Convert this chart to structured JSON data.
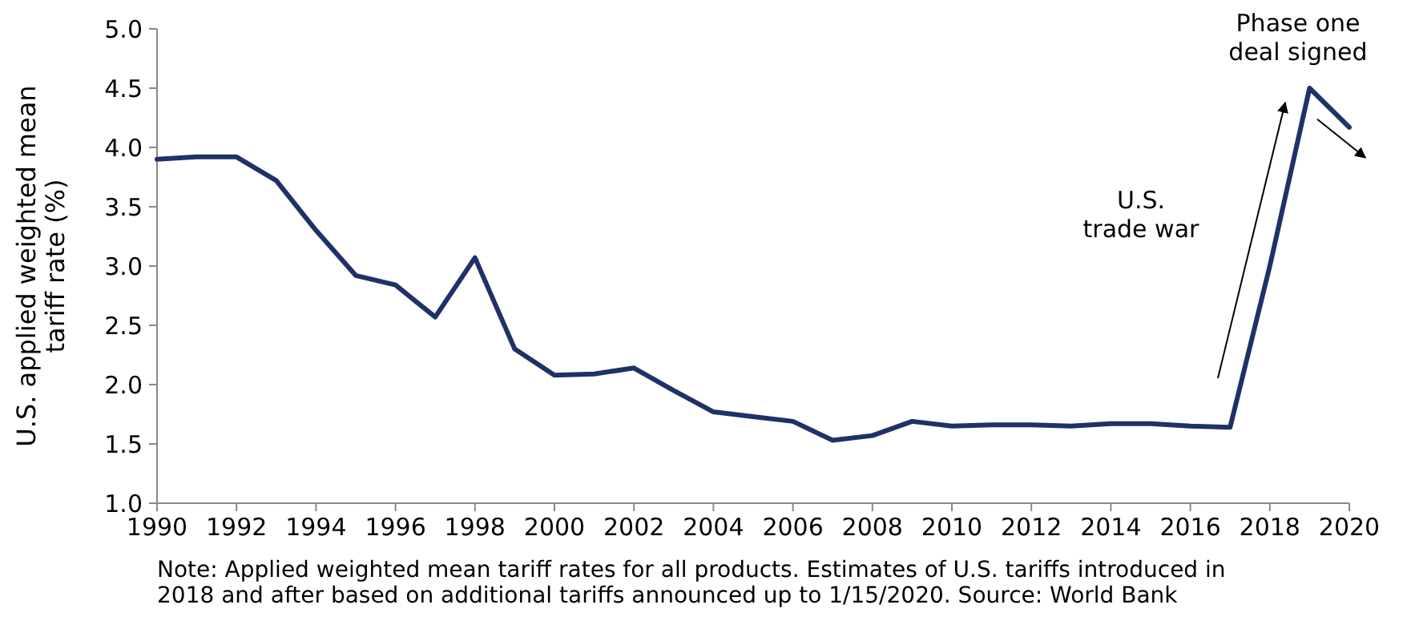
{
  "chart_data": {
    "type": "line",
    "ylabel": "U.S. applied weighted mean tariff rate (%)",
    "x": [
      1990,
      1991,
      1992,
      1993,
      1994,
      1995,
      1996,
      1997,
      1998,
      1999,
      2000,
      2001,
      2002,
      2003,
      2004,
      2005,
      2006,
      2007,
      2008,
      2009,
      2010,
      2011,
      2012,
      2013,
      2014,
      2015,
      2016,
      2017,
      2018,
      2019,
      2020
    ],
    "series": [
      {
        "color": "#1f3167",
        "values": [
          3.9,
          3.92,
          3.92,
          3.72,
          3.3,
          2.92,
          2.84,
          2.57,
          3.07,
          2.3,
          2.08,
          2.09,
          2.14,
          1.95,
          1.77,
          1.73,
          1.69,
          1.53,
          1.57,
          1.69,
          1.65,
          1.66,
          1.66,
          1.65,
          1.67,
          1.67,
          1.65,
          1.64,
          3.0,
          4.5,
          4.17
        ]
      }
    ],
    "xlim": [
      1990,
      2020
    ],
    "xticks": [
      1990,
      1992,
      1994,
      1996,
      1998,
      2000,
      2002,
      2004,
      2006,
      2008,
      2010,
      2012,
      2014,
      2016,
      2018,
      2020
    ],
    "ylim": [
      1,
      5
    ],
    "yticks": [
      {
        "value": 1,
        "label": "1.0"
      },
      {
        "value": 1.5,
        "label": "1.5"
      },
      {
        "value": 2,
        "label": "2.0"
      },
      {
        "value": 2.5,
        "label": "2.5"
      },
      {
        "value": 3,
        "label": "3.0"
      },
      {
        "value": 3.5,
        "label": "3.5"
      },
      {
        "value": 4,
        "label": "4.0"
      },
      {
        "value": 4.5,
        "label": "4.5"
      },
      {
        "value": 5,
        "label": "5.0"
      }
    ],
    "grid": false,
    "marker": "none",
    "line_style": "solid",
    "annotations": [
      "U.S. trade war",
      {
        "text": "Phase one deal signed",
        "x": 2020,
        "y": 4.17
      },
      "Note: Applied weighted mean tariff rates for all products. Estimates of U.S. tariffs introduced in 2018 and after based on additional tariffs announced up to 1/15/2020. Source: World Bank"
    ]
  }
}
